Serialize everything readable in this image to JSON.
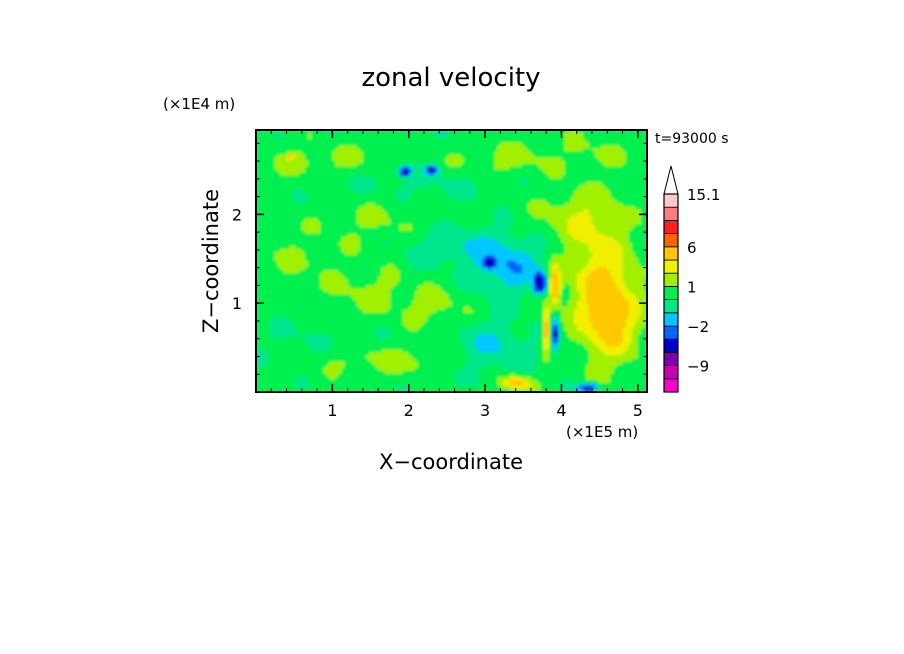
{
  "chart_data": {
    "type": "heatmap",
    "title": "zonal velocity",
    "xlabel": "X−coordinate",
    "ylabel": "Z−coordinate",
    "x_scale_label": "(×1E5 m)",
    "y_scale_label": "(×1E4 m)",
    "time_label": "t=93000 s",
    "xlim": [
      0,
      5.12
    ],
    "ylim": [
      0,
      2.95
    ],
    "x_ticks": [
      1,
      2,
      3,
      4,
      5
    ],
    "y_ticks": [
      1,
      2
    ],
    "colorbar": {
      "levels": [
        -15,
        -12,
        -9,
        -6,
        -3,
        -2,
        -1,
        0,
        1,
        2,
        3,
        6,
        9,
        12,
        15.1
      ],
      "colors": [
        "#ff00c8",
        "#c800b4",
        "#7d00aa",
        "#0000c8",
        "#0064ff",
        "#00c8ff",
        "#00e68c",
        "#00f050",
        "#a0f000",
        "#f0f000",
        "#ffc800",
        "#ff6400",
        "#ff1e1e",
        "#ff7d7d",
        "#ffc8c8"
      ],
      "tick_labels": [
        {
          "value": 15.1,
          "text": "15.1"
        },
        {
          "value": 6,
          "text": "6"
        },
        {
          "value": 1,
          "text": "1"
        },
        {
          "value": -2,
          "text": "−2"
        },
        {
          "value": -9,
          "text": "−9"
        }
      ],
      "extend": "max"
    }
  }
}
